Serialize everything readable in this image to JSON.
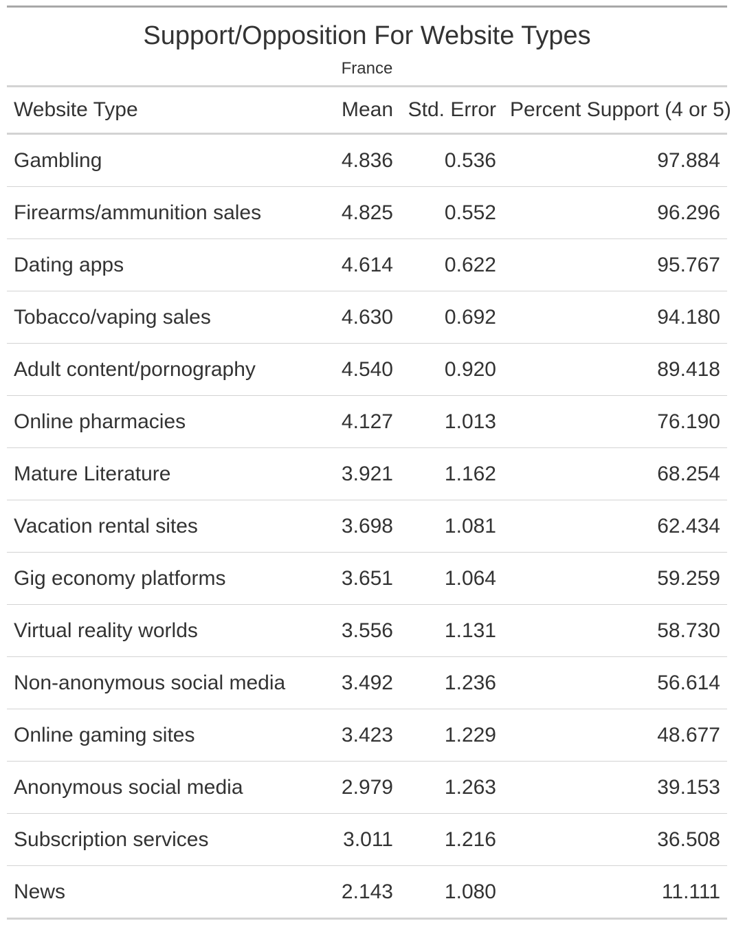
{
  "chart_data": {
    "type": "table",
    "title": "Support/Opposition For Website Types",
    "subtitle": "France",
    "columns": [
      "Website Type",
      "Mean",
      "Std. Error",
      "Percent Support (4 or 5)"
    ],
    "rows": [
      [
        "Gambling",
        "4.836",
        "0.536",
        "97.884"
      ],
      [
        "Firearms/ammunition sales",
        "4.825",
        "0.552",
        "96.296"
      ],
      [
        "Dating apps",
        "4.614",
        "0.622",
        "95.767"
      ],
      [
        "Tobacco/vaping sales",
        "4.630",
        "0.692",
        "94.180"
      ],
      [
        "Adult content/pornography",
        "4.540",
        "0.920",
        "89.418"
      ],
      [
        "Online pharmacies",
        "4.127",
        "1.013",
        "76.190"
      ],
      [
        "Mature Literature",
        "3.921",
        "1.162",
        "68.254"
      ],
      [
        "Vacation rental sites",
        "3.698",
        "1.081",
        "62.434"
      ],
      [
        "Gig economy platforms",
        "3.651",
        "1.064",
        "59.259"
      ],
      [
        "Virtual reality worlds",
        "3.556",
        "1.131",
        "58.730"
      ],
      [
        "Non-anonymous social media",
        "3.492",
        "1.236",
        "56.614"
      ],
      [
        "Online gaming sites",
        "3.423",
        "1.229",
        "48.677"
      ],
      [
        "Anonymous social media",
        "2.979",
        "1.263",
        "39.153"
      ],
      [
        "Subscription services",
        "3.011",
        "1.216",
        "36.508"
      ],
      [
        "News",
        "2.143",
        "1.080",
        "11.111"
      ]
    ]
  },
  "colors": {
    "text": "#333333",
    "rule_dark": "#a8a8a8",
    "rule_light": "#d3d3d3",
    "background": "#ffffff"
  }
}
